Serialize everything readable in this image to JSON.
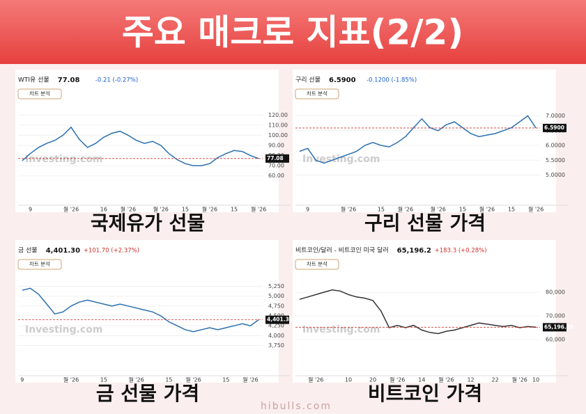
{
  "header": {
    "title": "주요 매크로 지표(2/2)"
  },
  "footer": {
    "site": "hibulls.com"
  },
  "chart_data": [
    {
      "type": "line",
      "title": "WTI유 선물",
      "price": "77.08",
      "change": "-0.21 (-0.27%)",
      "change_color": "#1a5fd0",
      "button": "차트 분석",
      "watermark": "Investing.com",
      "caption": "국제유가 선물",
      "color": "#2a6fb0",
      "last_label": "77.08",
      "categories": [
        null,
        "9",
        null,
        null,
        null,
        null,
        "월 '26",
        null,
        null,
        null,
        "16",
        null,
        null,
        "월 '26",
        null,
        null,
        null,
        "월 '26",
        null,
        null,
        "15",
        null,
        null,
        "월 '26",
        null,
        null,
        "15",
        null,
        null,
        "월 '26"
      ],
      "values": [
        75,
        82,
        88,
        92,
        95,
        100,
        108,
        96,
        88,
        92,
        98,
        102,
        104,
        100,
        95,
        92,
        94,
        90,
        82,
        76,
        72,
        70,
        70,
        72,
        78,
        82,
        85,
        84,
        80,
        77.08
      ],
      "ylim": [
        55,
        125
      ],
      "yticks": [
        {
          "value": 60,
          "label": "60.00"
        },
        {
          "value": 70,
          "label": "70.00"
        },
        {
          "value": 80,
          "label": "80.00"
        },
        {
          "value": 90,
          "label": "90.00"
        },
        {
          "value": 100,
          "label": "100.00"
        },
        {
          "value": 110,
          "label": "110.00"
        },
        {
          "value": 120,
          "label": "120.00"
        }
      ]
    },
    {
      "type": "line",
      "title": "구리 선물",
      "price": "6.5900",
      "change": "-0.1200 (-1.85%)",
      "change_color": "#1a5fd0",
      "button": "차트 분석",
      "watermark": "Investing.com",
      "caption": "구리 선물 가격",
      "color": "#2a6fb0",
      "last_label": "6.5900",
      "categories": [
        null,
        "9",
        null,
        null,
        null,
        null,
        "월 '26",
        null,
        null,
        null,
        "15",
        null,
        null,
        "월 '26",
        null,
        null,
        null,
        "월 '26",
        null,
        null,
        "15",
        null,
        null,
        "월 '26",
        null,
        null,
        "15",
        null,
        null,
        "월 '26"
      ],
      "values": [
        5.8,
        5.9,
        5.5,
        5.4,
        5.5,
        5.6,
        5.7,
        5.8,
        6.0,
        6.1,
        6.0,
        5.95,
        6.1,
        6.3,
        6.6,
        6.9,
        6.6,
        6.5,
        6.7,
        6.8,
        6.6,
        6.4,
        6.3,
        6.35,
        6.4,
        6.5,
        6.6,
        6.8,
        7.0,
        6.59
      ],
      "ylim": [
        4.8,
        7.2
      ],
      "yticks": [
        {
          "value": 5,
          "label": "5.0000"
        },
        {
          "value": 5.5,
          "label": "5.5000"
        },
        {
          "value": 6,
          "label": "6.0000"
        },
        {
          "value": 6.5,
          "label": "6.5000"
        },
        {
          "value": 7,
          "label": "7.0000"
        }
      ]
    },
    {
      "type": "line",
      "title": "금 선물",
      "price": "4,401.30",
      "change": "+101.70 (+2.37%)",
      "change_color": "#d0302a",
      "button": "차트 분석",
      "watermark": "Investing.com",
      "caption": "금 선물 가격",
      "color": "#2a6fb0",
      "last_label": "4,401.30",
      "categories": [
        "9",
        null,
        null,
        null,
        null,
        null,
        "월 '26",
        null,
        null,
        null,
        "15",
        null,
        null,
        null,
        "월 '26",
        null,
        null,
        null,
        "15",
        null,
        null,
        "월 '26",
        null,
        null,
        null,
        "15",
        null,
        null,
        "월 '26",
        null
      ],
      "values": [
        5150,
        5200,
        5050,
        4800,
        4550,
        4600,
        4750,
        4850,
        4900,
        4850,
        4800,
        4750,
        4800,
        4750,
        4700,
        4650,
        4600,
        4500,
        4350,
        4250,
        4150,
        4100,
        4150,
        4200,
        4150,
        4200,
        4250,
        4300,
        4250,
        4401.3
      ],
      "ylim": [
        3600,
        5400
      ],
      "yticks": [
        {
          "value": 3750,
          "label": "3,750"
        },
        {
          "value": 4000,
          "label": "4,000"
        },
        {
          "value": 4250,
          "label": "4,250"
        },
        {
          "value": 4500,
          "label": "4,500"
        },
        {
          "value": 4750,
          "label": "4,750"
        },
        {
          "value": 5000,
          "label": "5,000"
        },
        {
          "value": 5250,
          "label": "5,250"
        }
      ]
    },
    {
      "type": "line",
      "title": "비트코인/달러 - 비트코인 미국 달러",
      "price": "65,196.2",
      "change": "+183.3 (+0.28%)",
      "change_color": "#d0302a",
      "button": "차트 분석",
      "watermark": "Investing.com",
      "caption": "비트코인 가격",
      "color": "#333333",
      "last_label": "65,196.20",
      "categories": [
        null,
        null,
        "월 '26",
        null,
        null,
        null,
        "10",
        null,
        null,
        "20",
        null,
        null,
        "월 '26",
        null,
        null,
        "14",
        null,
        null,
        "월 '26",
        null,
        null,
        "12",
        null,
        null,
        "22",
        null,
        null,
        "월 '26",
        null,
        "10"
      ],
      "values": [
        77000,
        78000,
        79000,
        80000,
        81000,
        80500,
        79000,
        78000,
        77500,
        76500,
        72000,
        65000,
        66000,
        65000,
        66000,
        64000,
        63000,
        62500,
        63500,
        64000,
        65000,
        66000,
        67000,
        66500,
        66000,
        65500,
        66000,
        65000,
        65500,
        65196.2
      ],
      "ylim": [
        55000,
        85000
      ],
      "yticks": [
        {
          "value": 60000,
          "label": "60,000"
        },
        {
          "value": 70000,
          "label": "70,000"
        },
        {
          "value": 80000,
          "label": "80,000"
        }
      ]
    }
  ]
}
